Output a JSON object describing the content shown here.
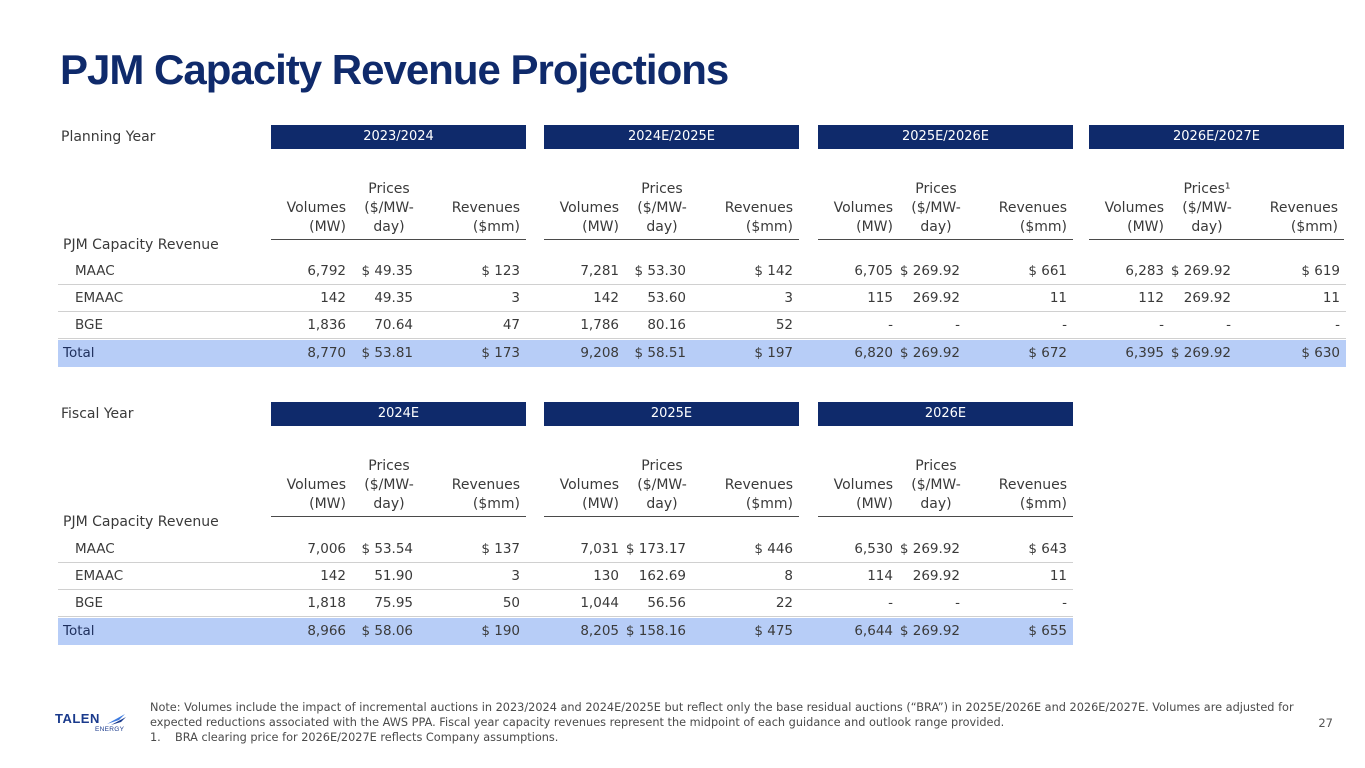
{
  "title": "PJM Capacity Revenue Projections",
  "planning": {
    "label": "Planning Year",
    "groups": [
      "2023/2024",
      "2024E/2025E",
      "2025E/2026E",
      "2026E/2027E"
    ],
    "col_headers": {
      "volumes": "Volumes\n(MW)",
      "prices": "Prices\n($/MW-\nday)",
      "prices_fn": "Prices¹\n($/MW-\nday)",
      "revenues": "Revenues\n($mm)"
    },
    "section_title": "PJM Capacity Revenue",
    "rows": [
      {
        "label": "MAAC",
        "values": [
          "6,792",
          "$ 49.35",
          "$ 123",
          "7,281",
          "$ 53.30",
          "$ 142",
          "6,705",
          "$ 269.92",
          "$ 661",
          "6,283",
          "$ 269.92",
          "$ 619"
        ]
      },
      {
        "label": "EMAAC",
        "values": [
          "142",
          "49.35",
          "3",
          "142",
          "53.60",
          "3",
          "115",
          "269.92",
          "11",
          "112",
          "269.92",
          "11"
        ]
      },
      {
        "label": "BGE",
        "values": [
          "1,836",
          "70.64",
          "47",
          "1,786",
          "80.16",
          "52",
          "-",
          "-",
          "-",
          "-",
          "-",
          "-"
        ]
      },
      {
        "label": "Total",
        "values": [
          "8,770",
          "$ 53.81",
          "$ 173",
          "9,208",
          "$ 58.51",
          "$ 197",
          "6,820",
          "$ 269.92",
          "$ 672",
          "6,395",
          "$ 269.92",
          "$ 630"
        ]
      }
    ]
  },
  "fiscal": {
    "label": "Fiscal Year",
    "groups": [
      "2024E",
      "2025E",
      "2026E"
    ],
    "col_headers": {
      "volumes": "Volumes\n(MW)",
      "prices": "Prices\n($/MW-\nday)",
      "revenues": "Revenues\n($mm)"
    },
    "section_title": "PJM Capacity Revenue",
    "rows": [
      {
        "label": "MAAC",
        "values": [
          "7,006",
          "$ 53.54",
          "$ 137",
          "7,031",
          "$ 173.17",
          "$ 446",
          "6,530",
          "$ 269.92",
          "$ 643"
        ]
      },
      {
        "label": "EMAAC",
        "values": [
          "142",
          "51.90",
          "3",
          "130",
          "162.69",
          "8",
          "114",
          "269.92",
          "11"
        ]
      },
      {
        "label": "BGE",
        "values": [
          "1,818",
          "75.95",
          "50",
          "1,044",
          "56.56",
          "22",
          "-",
          "-",
          "-"
        ]
      },
      {
        "label": "Total",
        "values": [
          "8,966",
          "$ 58.06",
          "$ 190",
          "8,205",
          "$ 158.16",
          "$ 475",
          "6,644",
          "$ 269.92",
          "$ 655"
        ]
      }
    ]
  },
  "note": "Note: Volumes include the impact of incremental auctions in 2023/2024 and 2024E/2025E but reflect only the base residual auctions (“BRA”) in 2025E/2026E and 2026E/2027E. Volumes are adjusted for expected reductions associated with the AWS PPA. Fiscal year capacity revenues represent the midpoint of each guidance and outlook range provided.",
  "footnote_num": "1.",
  "footnote": "BRA clearing price for 2026E/2027E reflects Company assumptions.",
  "logo": {
    "main": "TALEN",
    "sub": "ENERGY"
  },
  "page_number": "27",
  "colors": {
    "navy": "#0f2a6b",
    "total_row": "#b7cdf7"
  }
}
